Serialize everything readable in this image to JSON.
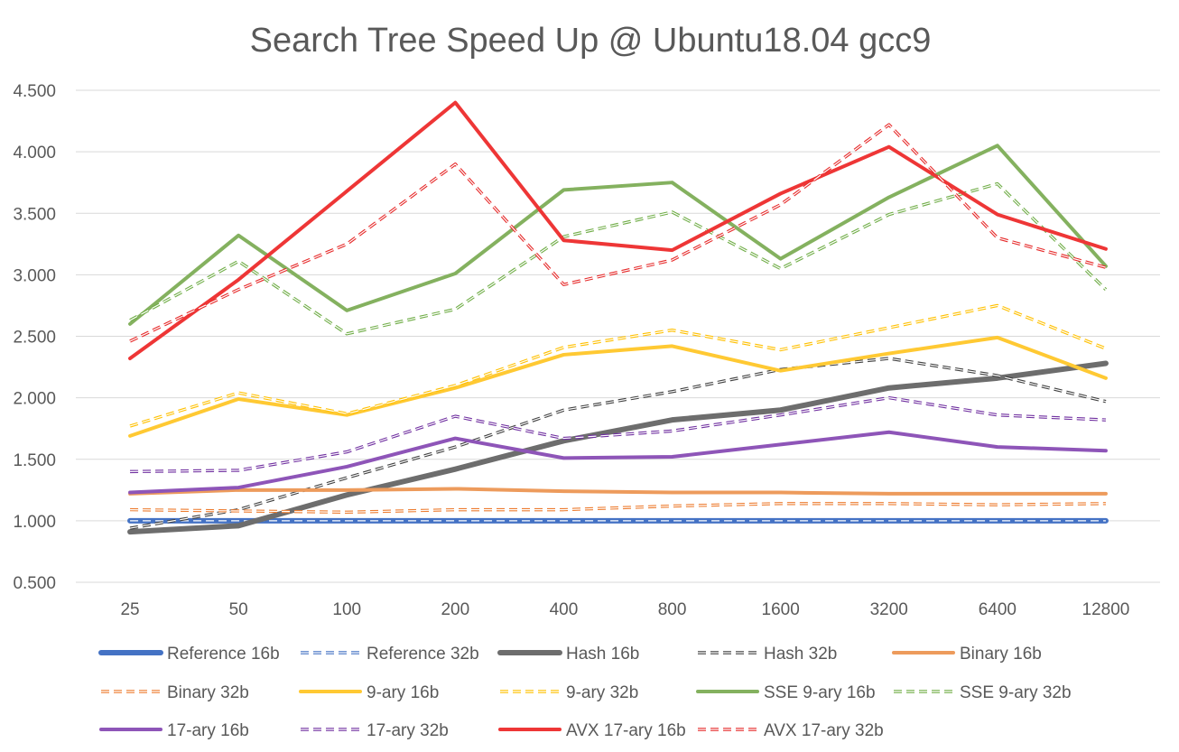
{
  "chart_data": {
    "type": "line",
    "title": "Search Tree Speed Up @ Ubuntu18.04 gcc9",
    "xlabel": "",
    "ylabel": "",
    "categories": [
      "25",
      "50",
      "100",
      "200",
      "400",
      "800",
      "1600",
      "3200",
      "6400",
      "12800"
    ],
    "ylim": [
      0.5,
      4.5
    ],
    "yticks": [
      0.5,
      1.0,
      1.5,
      2.0,
      2.5,
      3.0,
      3.5,
      4.0,
      4.5
    ],
    "ytick_labels": [
      "0.500",
      "1.000",
      "1.500",
      "2.000",
      "2.500",
      "3.000",
      "3.500",
      "4.000",
      "4.500"
    ],
    "grid": true,
    "legend_position": "bottom",
    "series": [
      {
        "name": "Reference 16b",
        "color": "#4472c4",
        "style": "solid-thick",
        "values": [
          1.0,
          1.0,
          1.0,
          1.0,
          1.0,
          1.0,
          1.0,
          1.0,
          1.0,
          1.0
        ]
      },
      {
        "name": "Reference 32b",
        "color": "#4472c4",
        "style": "dashed-double",
        "values": [
          1.0,
          1.0,
          1.0,
          1.0,
          1.0,
          1.0,
          1.0,
          1.0,
          1.0,
          1.0
        ]
      },
      {
        "name": "Hash 16b",
        "color": "#6d6d6d",
        "style": "solid-thick",
        "values": [
          0.91,
          0.96,
          1.21,
          1.42,
          1.65,
          1.82,
          1.9,
          2.08,
          2.16,
          2.28
        ]
      },
      {
        "name": "Hash 32b",
        "color": "#404040",
        "style": "dashed-double",
        "values": [
          0.94,
          1.09,
          1.35,
          1.6,
          1.9,
          2.05,
          2.23,
          2.32,
          2.18,
          1.97
        ]
      },
      {
        "name": "Binary 16b",
        "color": "#ed9b5c",
        "style": "solid",
        "values": [
          1.22,
          1.25,
          1.25,
          1.26,
          1.24,
          1.23,
          1.23,
          1.22,
          1.22,
          1.22
        ]
      },
      {
        "name": "Binary 32b",
        "color": "#ed7d31",
        "style": "dashed-double",
        "values": [
          1.09,
          1.08,
          1.07,
          1.09,
          1.09,
          1.12,
          1.14,
          1.14,
          1.13,
          1.14
        ]
      },
      {
        "name": "9-ary 16b",
        "color": "#ffc933",
        "style": "solid",
        "values": [
          1.69,
          1.99,
          1.86,
          2.08,
          2.35,
          2.42,
          2.22,
          2.36,
          2.49,
          2.16
        ]
      },
      {
        "name": "9-ary 32b",
        "color": "#ffc000",
        "style": "dashed-double",
        "values": [
          1.77,
          2.04,
          1.87,
          2.1,
          2.41,
          2.55,
          2.39,
          2.57,
          2.75,
          2.4
        ]
      },
      {
        "name": "SSE 9-ary 16b",
        "color": "#84b15f",
        "style": "solid",
        "values": [
          2.6,
          3.32,
          2.71,
          3.01,
          3.69,
          3.75,
          3.13,
          3.63,
          4.05,
          3.07
        ]
      },
      {
        "name": "SSE 9-ary 32b",
        "color": "#70ad47",
        "style": "dashed-double",
        "values": [
          2.63,
          3.11,
          2.52,
          2.72,
          3.31,
          3.51,
          3.05,
          3.49,
          3.74,
          2.88
        ]
      },
      {
        "name": "17-ary 16b",
        "color": "#8e55b8",
        "style": "solid",
        "values": [
          1.23,
          1.27,
          1.44,
          1.67,
          1.51,
          1.52,
          1.62,
          1.72,
          1.6,
          1.57
        ]
      },
      {
        "name": "17-ary 32b",
        "color": "#7030a0",
        "style": "dashed-double",
        "values": [
          1.4,
          1.41,
          1.56,
          1.85,
          1.67,
          1.73,
          1.86,
          2.0,
          1.86,
          1.82
        ]
      },
      {
        "name": "AVX 17-ary 16b",
        "color": "#ee3636",
        "style": "solid",
        "values": [
          2.32,
          2.96,
          3.68,
          4.4,
          3.28,
          3.2,
          3.66,
          4.04,
          3.49,
          3.21
        ]
      },
      {
        "name": "AVX 17-ary 32b",
        "color": "#e62a2a",
        "style": "dashed-double",
        "values": [
          2.46,
          2.88,
          3.25,
          3.9,
          2.92,
          3.12,
          3.57,
          4.22,
          3.3,
          3.06
        ]
      }
    ]
  }
}
